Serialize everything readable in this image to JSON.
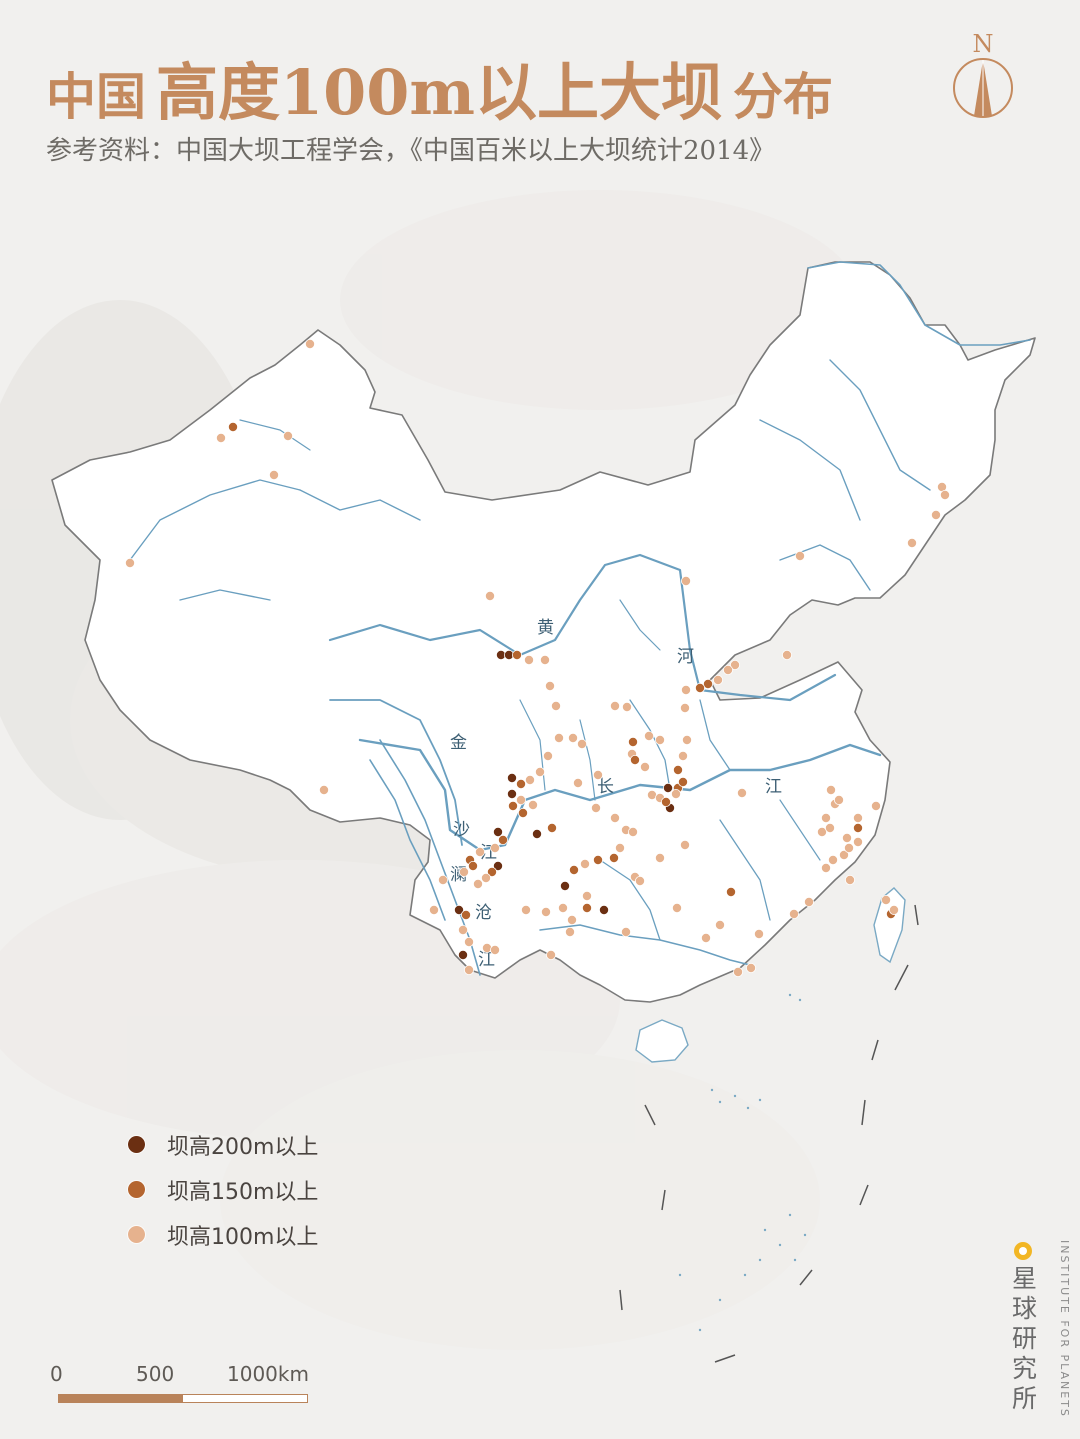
{
  "title": {
    "part1": "中国",
    "part2": "高度100m以上大坝",
    "part3": "分布"
  },
  "subtitle": "参考资料：中国大坝工程学会，《中国百米以上大坝统计2014》",
  "compass_label": "N",
  "river_labels": [
    "黄",
    "河",
    "长",
    "江",
    "金",
    "沙",
    "江",
    "澜",
    "沧",
    "江"
  ],
  "legend": [
    {
      "label": "坝高200m以上",
      "color": "#6b2f12"
    },
    {
      "label": "坝高150m以上",
      "color": "#b4652f"
    },
    {
      "label": "坝高100m以上",
      "color": "#e6b28e"
    }
  ],
  "scale": {
    "ticks": [
      "0",
      "500",
      "1000km"
    ]
  },
  "brand": {
    "name_cn": "星球研究所",
    "name_en": "INSTITUTE FOR PLANETS"
  },
  "colors": {
    "accent": "#c48a5e",
    "river": "#6a9fbf",
    "land": "#ffffff",
    "background": "#f1f0ee"
  }
}
